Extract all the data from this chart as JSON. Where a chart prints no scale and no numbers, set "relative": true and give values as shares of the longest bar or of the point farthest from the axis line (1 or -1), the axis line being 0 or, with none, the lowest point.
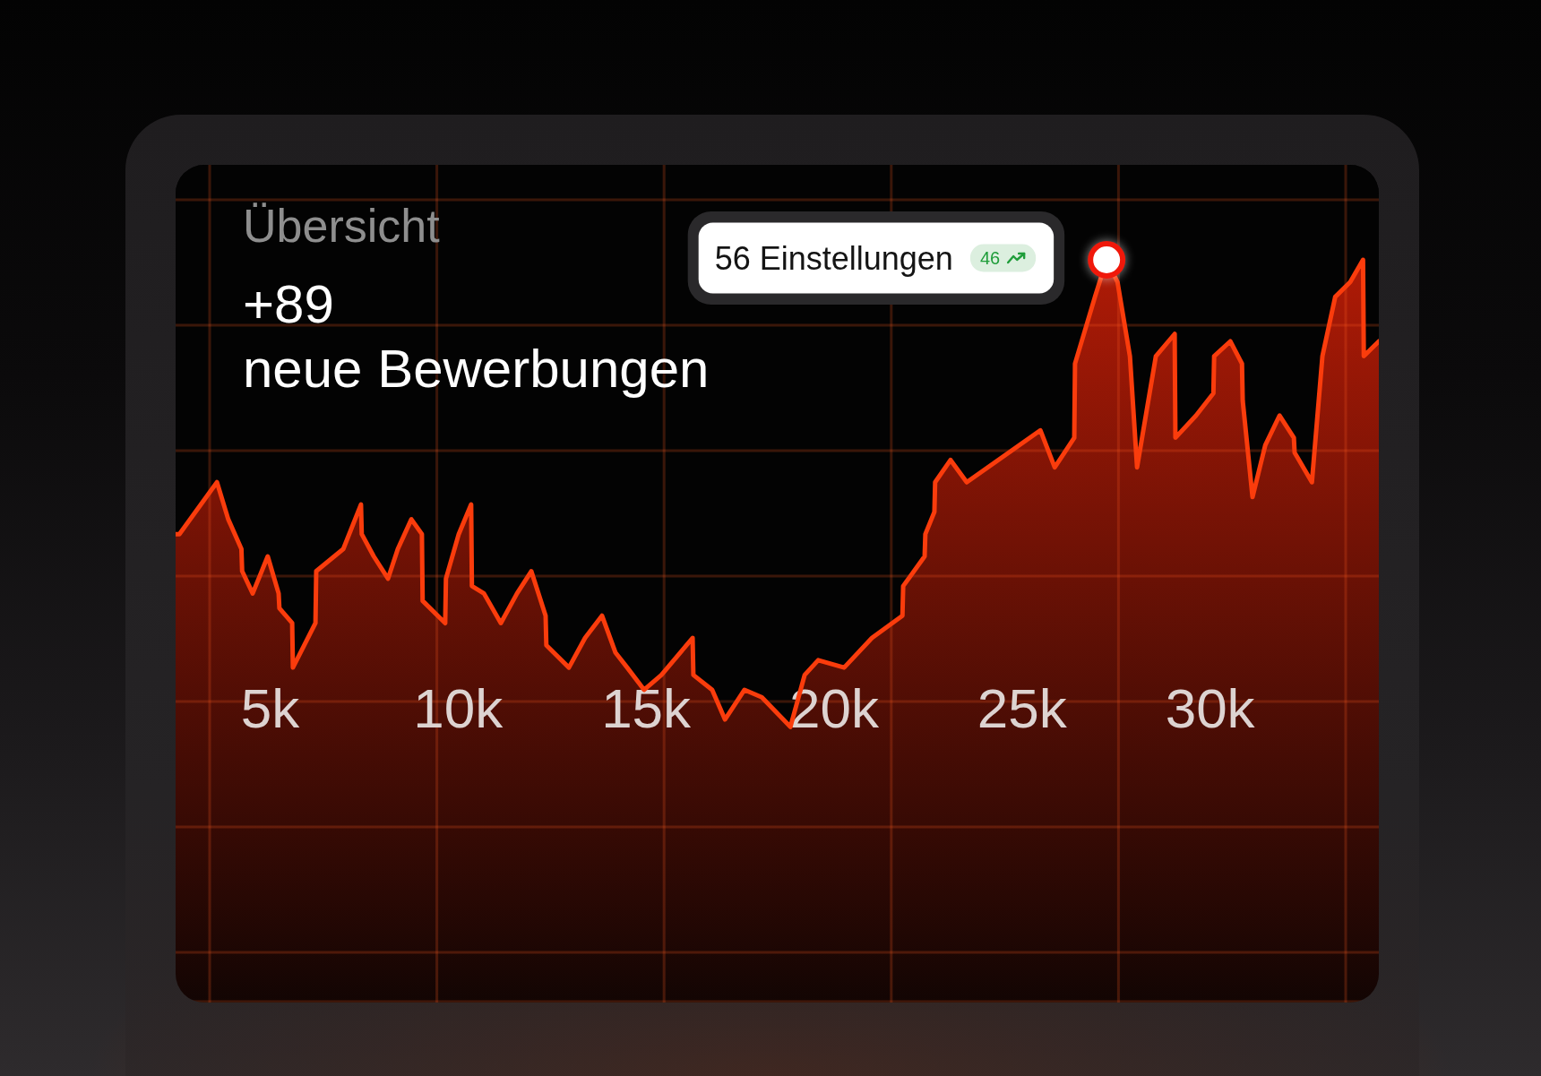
{
  "chart_data": {
    "type": "area",
    "title": "Übersicht",
    "subtitle": "+89\nneue Bewerbungen",
    "relative": true,
    "x": [
      2500,
      2600,
      3600,
      3900,
      4250,
      4270,
      4550,
      4950,
      5240,
      5260,
      5600,
      5620,
      6220,
      6240,
      6960,
      7430,
      7450,
      7770,
      8150,
      8410,
      8770,
      9050,
      9070,
      9670,
      9690,
      10030,
      10360,
      10380,
      10700,
      11150,
      11580,
      11960,
      12340,
      12360,
      12960,
      13390,
      13840,
      14200,
      14510,
      14960,
      15420,
      16250,
      16270,
      16770,
      17110,
      17630,
      18090,
      18850,
      19230,
      19590,
      20280,
      21020,
      21830,
      21850,
      22420,
      22440,
      22680,
      22700,
      23110,
      23540,
      25500,
      25880,
      26400,
      26420,
      26950,
      27260,
      27550,
      27880,
      28070,
      28570,
      29070,
      29090,
      29640,
      30100,
      30120,
      30550,
      30860,
      30880,
      31140,
      31480,
      31860,
      32240,
      32260,
      32720,
      33000,
      33340,
      33740,
      34080,
      34100,
      34500
    ],
    "series": [
      {
        "color": "#fa3c0c",
        "values": [
          0.63,
          0.63,
          0.7,
          0.65,
          0.61,
          0.58,
          0.55,
          0.6,
          0.55,
          0.53,
          0.51,
          0.45,
          0.51,
          0.58,
          0.61,
          0.67,
          0.63,
          0.6,
          0.57,
          0.61,
          0.65,
          0.63,
          0.54,
          0.51,
          0.57,
          0.63,
          0.67,
          0.56,
          0.55,
          0.51,
          0.55,
          0.58,
          0.52,
          0.48,
          0.45,
          0.49,
          0.52,
          0.47,
          0.45,
          0.42,
          0.44,
          0.49,
          0.44,
          0.42,
          0.38,
          0.42,
          0.41,
          0.37,
          0.44,
          0.46,
          0.45,
          0.49,
          0.52,
          0.56,
          0.6,
          0.63,
          0.66,
          0.7,
          0.73,
          0.7,
          0.77,
          0.72,
          0.76,
          0.86,
          0.95,
          1,
          0.97,
          0.87,
          0.72,
          0.87,
          0.9,
          0.76,
          0.79,
          0.82,
          0.87,
          0.89,
          0.86,
          0.81,
          0.68,
          0.75,
          0.79,
          0.76,
          0.74,
          0.7,
          0.87,
          0.95,
          0.97,
          1,
          0.87,
          0.89
        ]
      },
      {
        "type": "line",
        "x": [
          27260
        ],
        "values": [
          1
        ],
        "color": "#f0180a",
        "marker": "circle"
      }
    ],
    "xlim": [
      2500,
      34500
    ],
    "xticks": [
      {
        "value": 5000,
        "label": "5k"
      },
      {
        "value": 10000,
        "label": "10k"
      },
      {
        "value": 15000,
        "label": "15k"
      },
      {
        "value": 20000,
        "label": "20k"
      },
      {
        "value": 25000,
        "label": "25k"
      },
      {
        "value": 30000,
        "label": "30k"
      }
    ],
    "annotations": [
      "56 Einstellungen",
      "46"
    ]
  }
}
